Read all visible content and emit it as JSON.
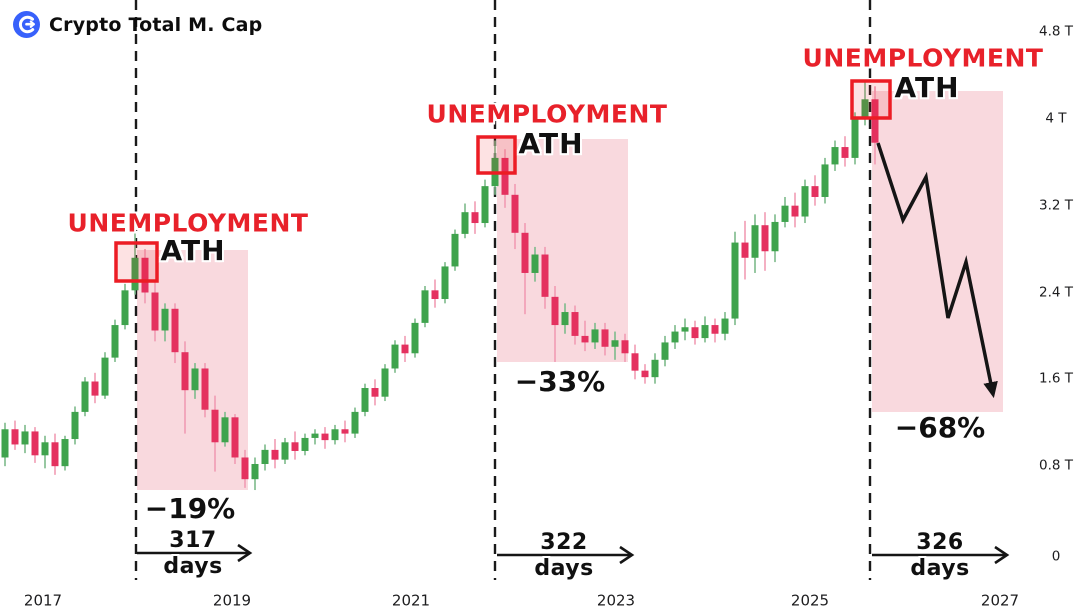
{
  "header": {
    "title": "Crypto Total M. Cap",
    "logo_color": "#3861fb"
  },
  "chart_data": {
    "type": "candlestick",
    "title": "Crypto Total M. Cap",
    "unit": "T (trillion USD)",
    "ylim": [
      0,
      4.8
    ],
    "grid": false,
    "legend": "none",
    "axis": {
      "y_zero": 553,
      "y_span": 521,
      "v_max": 4.8
    },
    "colors": {
      "up": "#3fa34d",
      "up_wick": "#7dbb8b",
      "down": "#e4315f",
      "down_wick": "#f19cb4",
      "zone_fill": "#f9d9de",
      "zone_stroke": "#ec1c24",
      "annotation_red": "#e8212a",
      "ink": "#151515"
    },
    "y_ticks": [
      {
        "label": "4.8 T",
        "v": 4.8
      },
      {
        "label": "4 T",
        "v": 4.0
      },
      {
        "label": "3.2 T",
        "v": 3.2
      },
      {
        "label": "2.4 T",
        "v": 2.4
      },
      {
        "label": "1.6 T",
        "v": 1.6
      },
      {
        "label": "0.8 T",
        "v": 0.8
      },
      {
        "label": "0",
        "v": 0
      }
    ],
    "x_ticks": [
      {
        "label": "2017",
        "x": 43
      },
      {
        "label": "2019",
        "x": 232
      },
      {
        "label": "2021",
        "x": 411
      },
      {
        "label": "2023",
        "x": 616
      },
      {
        "label": "2025",
        "x": 810
      },
      {
        "label": "2027",
        "x": 1000
      }
    ],
    "x_start": 5,
    "x_step": 10,
    "candle_width": 7,
    "candles": [
      [
        0.88,
        1.2,
        0.8,
        1.14
      ],
      [
        1.14,
        1.22,
        0.95,
        1.0
      ],
      [
        1.0,
        1.18,
        0.92,
        1.12
      ],
      [
        1.12,
        1.16,
        0.83,
        0.9
      ],
      [
        0.9,
        1.08,
        0.78,
        1.02
      ],
      [
        1.02,
        1.1,
        0.72,
        0.8
      ],
      [
        0.8,
        1.08,
        0.76,
        1.05
      ],
      [
        1.05,
        1.35,
        1.0,
        1.3
      ],
      [
        1.3,
        1.62,
        1.26,
        1.58
      ],
      [
        1.58,
        1.66,
        1.38,
        1.45
      ],
      [
        1.45,
        1.85,
        1.42,
        1.8
      ],
      [
        1.8,
        2.15,
        1.76,
        2.1
      ],
      [
        2.1,
        2.48,
        2.06,
        2.42
      ],
      [
        2.42,
        2.95,
        2.38,
        2.72
      ],
      [
        2.72,
        2.8,
        2.3,
        2.4
      ],
      [
        2.4,
        2.5,
        1.95,
        2.05
      ],
      [
        2.05,
        2.3,
        1.95,
        2.25
      ],
      [
        2.25,
        2.3,
        1.75,
        1.85
      ],
      [
        1.85,
        1.95,
        1.1,
        1.5
      ],
      [
        1.5,
        1.75,
        1.42,
        1.7
      ],
      [
        1.7,
        1.75,
        1.25,
        1.32
      ],
      [
        1.32,
        1.45,
        0.75,
        1.02
      ],
      [
        1.02,
        1.3,
        0.98,
        1.25
      ],
      [
        1.25,
        1.28,
        0.82,
        0.88
      ],
      [
        0.88,
        0.95,
        0.6,
        0.68
      ],
      [
        0.68,
        0.88,
        0.58,
        0.82
      ],
      [
        0.82,
        1.0,
        0.76,
        0.95
      ],
      [
        0.95,
        1.05,
        0.78,
        0.86
      ],
      [
        0.86,
        1.06,
        0.82,
        1.02
      ],
      [
        1.02,
        1.12,
        0.86,
        0.94
      ],
      [
        0.94,
        1.1,
        0.9,
        1.06
      ],
      [
        1.06,
        1.14,
        1.0,
        1.1
      ],
      [
        1.1,
        1.16,
        0.96,
        1.04
      ],
      [
        1.04,
        1.18,
        1.0,
        1.14
      ],
      [
        1.14,
        1.22,
        1.02,
        1.1
      ],
      [
        1.1,
        1.34,
        1.06,
        1.3
      ],
      [
        1.3,
        1.56,
        1.26,
        1.52
      ],
      [
        1.52,
        1.6,
        1.36,
        1.44
      ],
      [
        1.44,
        1.74,
        1.4,
        1.7
      ],
      [
        1.7,
        1.96,
        1.66,
        1.92
      ],
      [
        1.92,
        2.0,
        1.76,
        1.84
      ],
      [
        1.84,
        2.16,
        1.8,
        2.12
      ],
      [
        2.12,
        2.46,
        2.08,
        2.42
      ],
      [
        2.42,
        2.52,
        2.26,
        2.34
      ],
      [
        2.34,
        2.68,
        2.3,
        2.64
      ],
      [
        2.64,
        2.98,
        2.6,
        2.94
      ],
      [
        2.94,
        3.22,
        2.9,
        3.14
      ],
      [
        3.14,
        3.24,
        2.94,
        3.04
      ],
      [
        3.04,
        3.44,
        3.0,
        3.38
      ],
      [
        3.38,
        3.8,
        3.3,
        3.64
      ],
      [
        3.64,
        3.72,
        3.18,
        3.3
      ],
      [
        3.3,
        3.4,
        2.8,
        2.95
      ],
      [
        2.95,
        3.04,
        2.2,
        2.58
      ],
      [
        2.58,
        2.82,
        2.5,
        2.75
      ],
      [
        2.75,
        2.82,
        2.25,
        2.36
      ],
      [
        2.36,
        2.46,
        1.76,
        2.1
      ],
      [
        2.1,
        2.3,
        2.02,
        2.22
      ],
      [
        2.22,
        2.28,
        1.92,
        2.0
      ],
      [
        2.0,
        2.14,
        1.86,
        1.94
      ],
      [
        1.94,
        2.12,
        1.88,
        2.06
      ],
      [
        2.06,
        2.12,
        1.82,
        1.9
      ],
      [
        1.9,
        2.04,
        1.78,
        1.96
      ],
      [
        1.96,
        2.02,
        1.76,
        1.84
      ],
      [
        1.84,
        1.92,
        1.6,
        1.68
      ],
      [
        1.68,
        1.74,
        1.56,
        1.62
      ],
      [
        1.62,
        1.84,
        1.56,
        1.78
      ],
      [
        1.78,
        2.0,
        1.72,
        1.94
      ],
      [
        1.94,
        2.1,
        1.88,
        2.04
      ],
      [
        2.04,
        2.16,
        1.96,
        2.08
      ],
      [
        2.08,
        2.14,
        1.92,
        1.98
      ],
      [
        1.98,
        2.18,
        1.94,
        2.1
      ],
      [
        2.1,
        2.16,
        1.94,
        2.02
      ],
      [
        2.02,
        2.22,
        1.96,
        2.16
      ],
      [
        2.16,
        2.96,
        2.1,
        2.86
      ],
      [
        2.86,
        3.06,
        2.52,
        2.72
      ],
      [
        2.72,
        3.12,
        2.58,
        3.02
      ],
      [
        3.02,
        3.14,
        2.6,
        2.78
      ],
      [
        2.78,
        3.12,
        2.68,
        3.05
      ],
      [
        3.05,
        3.28,
        3.0,
        3.2
      ],
      [
        3.2,
        3.32,
        3.0,
        3.1
      ],
      [
        3.1,
        3.44,
        3.04,
        3.38
      ],
      [
        3.38,
        3.48,
        3.2,
        3.28
      ],
      [
        3.28,
        3.64,
        3.22,
        3.58
      ],
      [
        3.58,
        3.8,
        3.52,
        3.74
      ],
      [
        3.74,
        3.84,
        3.56,
        3.64
      ],
      [
        3.64,
        4.06,
        3.58,
        4.0
      ],
      [
        4.0,
        4.36,
        3.94,
        4.18
      ],
      [
        4.18,
        4.3,
        3.58,
        3.78
      ]
    ],
    "cycles": [
      {
        "event_label": "UNEMPLOYMENT",
        "ath_label": "ATH",
        "drawdown_label": "−19%",
        "duration_value": "317",
        "duration_unit": "days",
        "dash_x": 136,
        "pink_box": {
          "x1": 137,
          "y1": 250,
          "x2": 248,
          "y2": 490
        },
        "red_box": {
          "x": 116,
          "y": 243,
          "w": 41,
          "h": 38
        },
        "event_pos": {
          "cx": 188,
          "cy": 223
        },
        "ath_pos": {
          "cx": 193,
          "cy": 251
        },
        "drawdown_pos": {
          "cx": 190,
          "cy": 509
        },
        "arrow": {
          "x1": 137,
          "x2": 250,
          "y": 553
        },
        "duration_pos": {
          "cx": 193
        }
      },
      {
        "event_label": "UNEMPLOYMENT",
        "ath_label": "ATH",
        "drawdown_label": "−33%",
        "duration_value": "322",
        "duration_unit": "days",
        "dash_x": 495,
        "pink_box": {
          "x1": 497,
          "y1": 139,
          "x2": 628,
          "y2": 362
        },
        "red_box": {
          "x": 478,
          "y": 137,
          "w": 37,
          "h": 36
        },
        "event_pos": {
          "cx": 547,
          "cy": 114
        },
        "ath_pos": {
          "cx": 551,
          "cy": 144
        },
        "drawdown_pos": {
          "cx": 560,
          "cy": 382
        },
        "arrow": {
          "x1": 497,
          "x2": 632,
          "y": 555
        },
        "duration_pos": {
          "cx": 564
        }
      },
      {
        "event_label": "UNEMPLOYMENT",
        "ath_label": "ATH",
        "drawdown_label": "−68%",
        "duration_value": "326",
        "duration_unit": "days",
        "dash_x": 870,
        "pink_box": {
          "x1": 872,
          "y1": 91,
          "x2": 1003,
          "y2": 412
        },
        "red_box": {
          "x": 852,
          "y": 81,
          "w": 38,
          "h": 37
        },
        "event_pos": {
          "cx": 923,
          "cy": 58
        },
        "ath_pos": {
          "cx": 927,
          "cy": 88
        },
        "drawdown_pos": {
          "cx": 940,
          "cy": 428
        },
        "arrow": {
          "x1": 872,
          "x2": 1007,
          "y": 555
        },
        "duration_pos": {
          "cx": 940
        }
      }
    ],
    "projection": {
      "points": [
        [
          878,
          143
        ],
        [
          903,
          220
        ],
        [
          926,
          177
        ],
        [
          948,
          318
        ],
        [
          966,
          262
        ],
        [
          993,
          394
        ]
      ]
    }
  }
}
